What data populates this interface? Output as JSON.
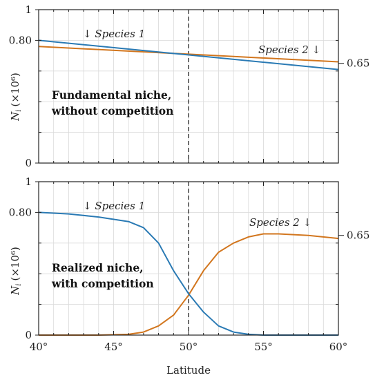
{
  "colors": {
    "species_1": "#2a7ab4",
    "species_2": "#d2761e",
    "grid": "#d9d9d9",
    "axis": "#222222"
  },
  "chart_data": [
    {
      "type": "line",
      "annotation_line1": "Fundamental niche,",
      "annotation_line2": "without competition",
      "ylabel": "N",
      "ylabel_sub": "i",
      "ylabel_unit": "(×10⁶)",
      "ylim": [
        0,
        1
      ],
      "xlim": [
        40,
        60
      ],
      "yticks": [
        {
          "value": 0,
          "label": "0"
        },
        {
          "value": 0.8,
          "label": "0.80"
        },
        {
          "value": 1,
          "label": "1"
        }
      ],
      "right_ticks": [
        {
          "value": 0.65,
          "label": "0.65"
        }
      ],
      "vline": 50,
      "grid": true,
      "series": [
        {
          "name": "Species 1",
          "label_text": "↓ Species 1",
          "x": [
            40,
            60
          ],
          "y": [
            0.8,
            0.61
          ]
        },
        {
          "name": "Species 2",
          "label_text": "Species 2 ↓",
          "x": [
            40,
            60
          ],
          "y": [
            0.76,
            0.66
          ]
        }
      ]
    },
    {
      "type": "line",
      "annotation_line1": "Realized niche,",
      "annotation_line2": "with competition",
      "ylabel": "N",
      "ylabel_sub": "i",
      "ylabel_unit": "(×10⁶)",
      "xlabel": "Latitude",
      "ylim": [
        0,
        1
      ],
      "xlim": [
        40,
        60
      ],
      "xticks": [
        {
          "value": 40,
          "label": "40°"
        },
        {
          "value": 45,
          "label": "45°"
        },
        {
          "value": 50,
          "label": "50°"
        },
        {
          "value": 55,
          "label": "55°"
        },
        {
          "value": 60,
          "label": "60°"
        }
      ],
      "yticks": [
        {
          "value": 0,
          "label": "0"
        },
        {
          "value": 0.8,
          "label": "0.80"
        },
        {
          "value": 1,
          "label": "1"
        }
      ],
      "right_ticks": [
        {
          "value": 0.65,
          "label": "0.65"
        }
      ],
      "vline": 50,
      "grid": true,
      "series": [
        {
          "name": "Species 1",
          "label_text": "↓ Species 1",
          "x": [
            40,
            42,
            44,
            46,
            47,
            48,
            49,
            50,
            51,
            52,
            53,
            54,
            55,
            56,
            58,
            60
          ],
          "y": [
            0.8,
            0.79,
            0.77,
            0.74,
            0.7,
            0.6,
            0.42,
            0.27,
            0.15,
            0.06,
            0.02,
            0.005,
            0,
            0,
            0,
            0
          ]
        },
        {
          "name": "Species 2",
          "label_text": "Species 2 ↓",
          "x": [
            40,
            44,
            46,
            47,
            48,
            49,
            50,
            51,
            52,
            53,
            54,
            55,
            56,
            58,
            60
          ],
          "y": [
            0,
            0,
            0.005,
            0.02,
            0.06,
            0.13,
            0.26,
            0.42,
            0.54,
            0.6,
            0.64,
            0.66,
            0.66,
            0.65,
            0.63
          ]
        }
      ]
    }
  ]
}
